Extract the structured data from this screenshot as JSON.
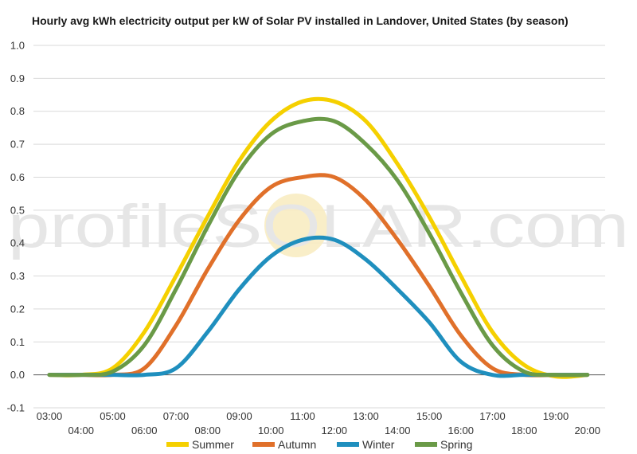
{
  "chart_data": {
    "type": "line",
    "title": "Hourly avg kWh electricity output per kW of Solar PV installed in Landover, United States (by season)",
    "watermark": "profileSOLAR.com",
    "xlabel": "",
    "ylabel": "",
    "ylim": [
      -0.1,
      1.0
    ],
    "yticks": [
      "1.0",
      "0.9",
      "0.8",
      "0.7",
      "0.6",
      "0.5",
      "0.4",
      "0.3",
      "0.2",
      "0.1",
      "0.0",
      "-0.1"
    ],
    "x": [
      "03:00",
      "04:00",
      "05:00",
      "06:00",
      "07:00",
      "08:00",
      "09:00",
      "10:00",
      "11:00",
      "12:00",
      "13:00",
      "14:00",
      "15:00",
      "16:00",
      "17:00",
      "18:00",
      "19:00",
      "20:00"
    ],
    "grid": true,
    "legend_position": "bottom",
    "series": [
      {
        "name": "Summer",
        "color": "#f5d000",
        "values": [
          0,
          0,
          0.02,
          0.13,
          0.3,
          0.48,
          0.65,
          0.77,
          0.83,
          0.83,
          0.77,
          0.64,
          0.48,
          0.3,
          0.13,
          0.03,
          -0.005,
          0
        ]
      },
      {
        "name": "Autumn",
        "color": "#e0702a",
        "values": [
          0,
          0,
          0,
          0.02,
          0.15,
          0.32,
          0.47,
          0.57,
          0.6,
          0.6,
          0.53,
          0.41,
          0.27,
          0.12,
          0.02,
          0,
          0,
          0
        ]
      },
      {
        "name": "Winter",
        "color": "#1f8fbe",
        "values": [
          0,
          0,
          0,
          0,
          0.02,
          0.13,
          0.26,
          0.36,
          0.41,
          0.41,
          0.35,
          0.26,
          0.16,
          0.04,
          0,
          0,
          0,
          0
        ]
      },
      {
        "name": "Spring",
        "color": "#6a9a47",
        "values": [
          0,
          0,
          0.01,
          0.09,
          0.26,
          0.45,
          0.62,
          0.73,
          0.77,
          0.77,
          0.7,
          0.59,
          0.43,
          0.25,
          0.09,
          0.01,
          0,
          0
        ]
      }
    ]
  }
}
